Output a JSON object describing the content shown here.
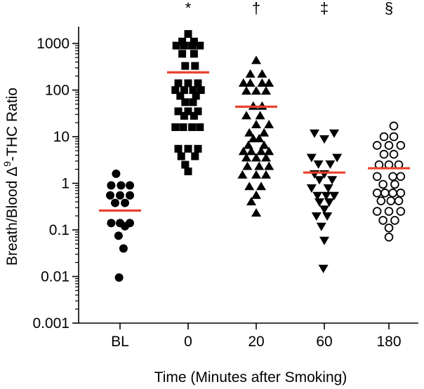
{
  "chart_data": {
    "type": "scatter",
    "title": "",
    "xlabel": "Time (Minutes after Smoking)",
    "ylabel": "Breath/Blood Δ9-THC Ratio",
    "ylabel_main": "Breath/Blood Δ",
    "ylabel_sup": "9",
    "ylabel_suffix": "-THC Ratio",
    "y_scale": "log",
    "ylim": [
      0.001,
      2000
    ],
    "y_ticks": [
      0.001,
      0.01,
      0.1,
      1,
      10,
      100,
      1000
    ],
    "y_tick_labels": [
      "0.001",
      "0.01",
      "0.1",
      "1",
      "10",
      "100",
      "1000"
    ],
    "categories": [
      "BL",
      "0",
      "20",
      "60",
      "180"
    ],
    "mean_line_color": "#e8412c",
    "marker_color": "#000000",
    "groups": [
      {
        "category": "BL",
        "marker": "circle-filled",
        "significance": "",
        "mean": 0.26,
        "points": [
          {
            "v": 1.6,
            "o": -0.4
          },
          {
            "v": 0.9,
            "o": -0.9
          },
          {
            "v": 0.9,
            "o": 0.1
          },
          {
            "v": 0.9,
            "o": 1.0
          },
          {
            "v": 0.55,
            "o": -1.0
          },
          {
            "v": 0.55,
            "o": 0.0
          },
          {
            "v": 0.55,
            "o": 1.0
          },
          {
            "v": 0.38,
            "o": -0.5
          },
          {
            "v": 0.38,
            "o": 0.5
          },
          {
            "v": 0.14,
            "o": -0.9
          },
          {
            "v": 0.14,
            "o": 0.0
          },
          {
            "v": 0.14,
            "o": 1.0
          },
          {
            "v": 0.12,
            "o": 0.5
          },
          {
            "v": 0.075,
            "o": -0.15
          },
          {
            "v": 0.04,
            "o": 0.35
          },
          {
            "v": 0.0095,
            "o": -0.1
          }
        ]
      },
      {
        "category": "0",
        "marker": "square-filled",
        "significance": "*",
        "mean": 240,
        "points": [
          {
            "v": 1600,
            "o": 0.0
          },
          {
            "v": 1100,
            "o": -0.6
          },
          {
            "v": 1100,
            "o": 0.6
          },
          {
            "v": 900,
            "o": -1.2
          },
          {
            "v": 900,
            "o": -0.4
          },
          {
            "v": 900,
            "o": 0.4
          },
          {
            "v": 900,
            "o": 1.2
          },
          {
            "v": 600,
            "o": -0.6
          },
          {
            "v": 600,
            "o": 0.6
          },
          {
            "v": 330,
            "o": -0.3
          },
          {
            "v": 330,
            "o": 0.7
          },
          {
            "v": 140,
            "o": -1.0
          },
          {
            "v": 140,
            "o": 0.0
          },
          {
            "v": 140,
            "o": 1.0
          },
          {
            "v": 100,
            "o": -1.3
          },
          {
            "v": 100,
            "o": -0.4
          },
          {
            "v": 100,
            "o": 0.5
          },
          {
            "v": 100,
            "o": 1.3
          },
          {
            "v": 75,
            "o": -0.8
          },
          {
            "v": 75,
            "o": 0.8
          },
          {
            "v": 55,
            "o": -0.3
          },
          {
            "v": 55,
            "o": 0.5
          },
          {
            "v": 35,
            "o": -1.0
          },
          {
            "v": 35,
            "o": 0.0
          },
          {
            "v": 35,
            "o": 1.0
          },
          {
            "v": 28,
            "o": -0.4
          },
          {
            "v": 28,
            "o": 0.6
          },
          {
            "v": 16,
            "o": -1.3
          },
          {
            "v": 16,
            "o": -0.5
          },
          {
            "v": 16,
            "o": 0.4
          },
          {
            "v": 16,
            "o": 1.2
          },
          {
            "v": 5.5,
            "o": -1.0
          },
          {
            "v": 5.5,
            "o": 0.0
          },
          {
            "v": 5.5,
            "o": 1.0
          },
          {
            "v": 3.8,
            "o": -0.7
          },
          {
            "v": 3.8,
            "o": 0.7
          },
          {
            "v": 2.5,
            "o": -0.3
          },
          {
            "v": 1.8,
            "o": 0.0
          }
        ]
      },
      {
        "category": "20",
        "marker": "triangle-up-filled",
        "significance": "†",
        "mean": 44,
        "points": [
          {
            "v": 430,
            "o": 0.0
          },
          {
            "v": 220,
            "o": -0.6
          },
          {
            "v": 220,
            "o": 0.6
          },
          {
            "v": 140,
            "o": -1.3
          },
          {
            "v": 140,
            "o": -0.6
          },
          {
            "v": 140,
            "o": 0.6
          },
          {
            "v": 140,
            "o": 1.3
          },
          {
            "v": 95,
            "o": -1.0
          },
          {
            "v": 95,
            "o": 0.0
          },
          {
            "v": 95,
            "o": 1.0
          },
          {
            "v": 45,
            "o": -0.3
          },
          {
            "v": 45,
            "o": 0.6
          },
          {
            "v": 28,
            "o": -1.0
          },
          {
            "v": 28,
            "o": 0.4
          },
          {
            "v": 18,
            "o": 0.0
          },
          {
            "v": 18,
            "o": 1.3
          },
          {
            "v": 12,
            "o": -0.7
          },
          {
            "v": 12,
            "o": 0.8
          },
          {
            "v": 9,
            "o": -0.3
          },
          {
            "v": 9,
            "o": 0.3
          },
          {
            "v": 6.5,
            "o": -0.8
          },
          {
            "v": 6.5,
            "o": 0.8
          },
          {
            "v": 4.8,
            "o": -1.3
          },
          {
            "v": 4.8,
            "o": -0.5
          },
          {
            "v": 4.8,
            "o": 0.5
          },
          {
            "v": 4.8,
            "o": 1.3
          },
          {
            "v": 3.5,
            "o": -1.0
          },
          {
            "v": 3.5,
            "o": 0.0
          },
          {
            "v": 3.5,
            "o": 1.0
          },
          {
            "v": 2.3,
            "o": -0.9
          },
          {
            "v": 2.3,
            "o": 0.3
          },
          {
            "v": 2.3,
            "o": 1.3
          },
          {
            "v": 1.5,
            "o": -1.4
          },
          {
            "v": 1.5,
            "o": 0.0
          },
          {
            "v": 1.5,
            "o": 1.0
          },
          {
            "v": 0.85,
            "o": -0.7
          },
          {
            "v": 0.85,
            "o": 0.5
          },
          {
            "v": 0.55,
            "o": 0.0
          },
          {
            "v": 0.4,
            "o": -0.5
          },
          {
            "v": 0.23,
            "o": 0.0
          }
        ]
      },
      {
        "category": "60",
        "marker": "triangle-down-filled",
        "significance": "‡",
        "mean": 1.7,
        "points": [
          {
            "v": 12,
            "o": -1.0
          },
          {
            "v": 12,
            "o": 1.0
          },
          {
            "v": 9,
            "o": 0.0
          },
          {
            "v": 3.6,
            "o": -1.3
          },
          {
            "v": 3.6,
            "o": 1.3
          },
          {
            "v": 2.6,
            "o": -0.6
          },
          {
            "v": 2.6,
            "o": 0.6
          },
          {
            "v": 1.6,
            "o": -1.0
          },
          {
            "v": 1.6,
            "o": 0.0
          },
          {
            "v": 1.2,
            "o": -0.5
          },
          {
            "v": 1.2,
            "o": 0.8
          },
          {
            "v": 0.8,
            "o": -1.3
          },
          {
            "v": 0.8,
            "o": 0.4
          },
          {
            "v": 0.55,
            "o": -0.7
          },
          {
            "v": 0.55,
            "o": 0.2
          },
          {
            "v": 0.55,
            "o": 1.0
          },
          {
            "v": 0.4,
            "o": -0.5
          },
          {
            "v": 0.4,
            "o": 0.5
          },
          {
            "v": 0.28,
            "o": 0.0
          },
          {
            "v": 0.2,
            "o": -0.8
          },
          {
            "v": 0.2,
            "o": 0.3
          },
          {
            "v": 0.12,
            "o": -0.3
          },
          {
            "v": 0.06,
            "o": 0.0
          },
          {
            "v": 0.015,
            "o": -0.1
          }
        ]
      },
      {
        "category": "180",
        "marker": "circle-open",
        "significance": "§",
        "mean": 2.1,
        "points": [
          {
            "v": 17,
            "o": 0.5
          },
          {
            "v": 10,
            "o": -0.5
          },
          {
            "v": 10,
            "o": 0.5
          },
          {
            "v": 6.5,
            "o": -1.2
          },
          {
            "v": 6.5,
            "o": 0.0
          },
          {
            "v": 6.5,
            "o": 1.2
          },
          {
            "v": 4.2,
            "o": -0.5
          },
          {
            "v": 4.2,
            "o": 0.5
          },
          {
            "v": 2.5,
            "o": -1.0
          },
          {
            "v": 2.5,
            "o": 0.0
          },
          {
            "v": 2.5,
            "o": 1.0
          },
          {
            "v": 1.4,
            "o": -1.2
          },
          {
            "v": 1.4,
            "o": 0.4
          },
          {
            "v": 1.4,
            "o": 1.2
          },
          {
            "v": 0.95,
            "o": -0.6
          },
          {
            "v": 0.95,
            "o": 0.6
          },
          {
            "v": 0.62,
            "o": -1.2
          },
          {
            "v": 0.62,
            "o": -0.4
          },
          {
            "v": 0.62,
            "o": 0.4
          },
          {
            "v": 0.62,
            "o": 1.2
          },
          {
            "v": 0.42,
            "o": -0.8
          },
          {
            "v": 0.42,
            "o": 0.2
          },
          {
            "v": 0.42,
            "o": 1.0
          },
          {
            "v": 0.25,
            "o": -1.2
          },
          {
            "v": 0.25,
            "o": 0.0
          },
          {
            "v": 0.25,
            "o": 1.2
          },
          {
            "v": 0.16,
            "o": -0.6
          },
          {
            "v": 0.16,
            "o": 0.6
          },
          {
            "v": 0.11,
            "o": 0.0
          },
          {
            "v": 0.07,
            "o": 0.0
          }
        ]
      }
    ]
  }
}
